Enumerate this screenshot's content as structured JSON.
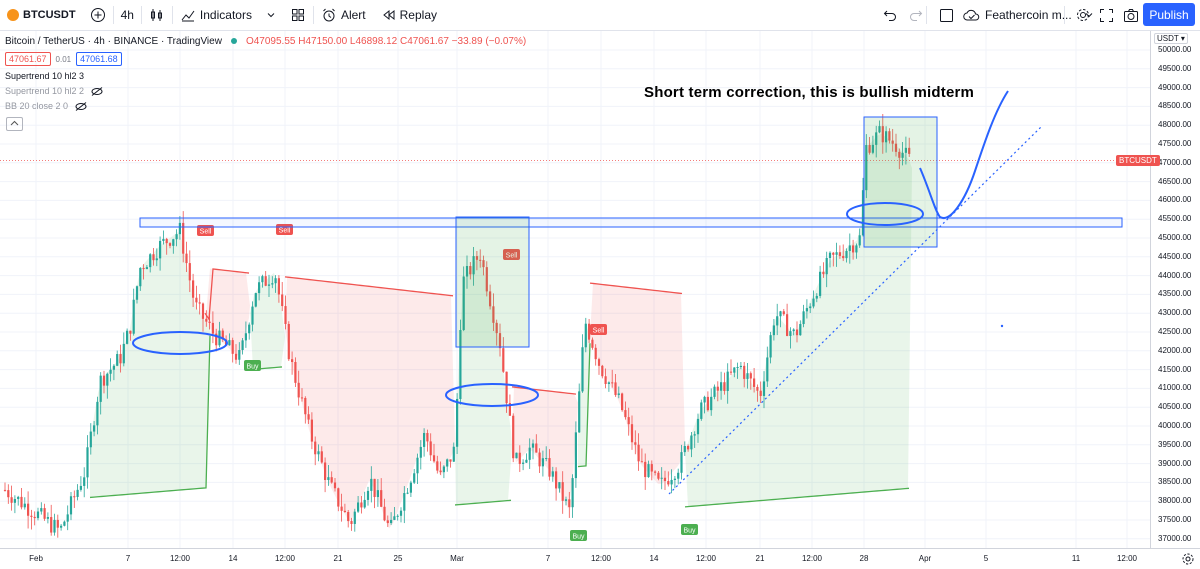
{
  "toolbar": {
    "symbol": "BTCUSDT",
    "interval": "4h",
    "indicators_label": "Indicators",
    "alert_label": "Alert",
    "replay_label": "Replay",
    "layout_name": "Feathercoin m...",
    "publish_label": "Publish"
  },
  "legend": {
    "title": "Bitcoin / TetherUS · 4h · BINANCE · TradingView",
    "ohlc": "O47095.55 H47150.00 L46898.12 C47061.67 −33.89 (−0.07%)",
    "bid": "47061.67",
    "spread": "0.01",
    "ask": "47061.68"
  },
  "indicators": [
    {
      "label": "Supertrend 10 hl2 3"
    },
    {
      "label": "Supertrend 10 hl2 2"
    },
    {
      "label": "BB 20 close 2 0"
    }
  ],
  "annotation": "Short term correction, this is bullish midterm",
  "price_axis": {
    "currency": "USDT",
    "ticks": [
      "50000.00",
      "49500.00",
      "49000.00",
      "48500.00",
      "48000.00",
      "47500.00",
      "47000.00",
      "46500.00",
      "46000.00",
      "45500.00",
      "45000.00",
      "44500.00",
      "44000.00",
      "43500.00",
      "43000.00",
      "42500.00",
      "42000.00",
      "41500.00",
      "41000.00",
      "40500.00",
      "40000.00",
      "39500.00",
      "39000.00",
      "38500.00",
      "38000.00",
      "37500.00",
      "37000.00"
    ],
    "last_label": "BTCUSDT"
  },
  "time_axis": {
    "ticks": [
      "Feb",
      "7",
      "12:00",
      "14",
      "12:00",
      "21",
      "25",
      "Mar",
      "7",
      "12:00",
      "14",
      "12:00",
      "21",
      "12:00",
      "28",
      "Apr",
      "5",
      "11",
      "12:00"
    ]
  },
  "signals": [
    {
      "label": "Sell"
    },
    {
      "label": "Sell"
    },
    {
      "label": "Buy"
    },
    {
      "label": "Sell"
    },
    {
      "label": "Buy"
    },
    {
      "label": "Sell"
    },
    {
      "label": "Buy"
    }
  ],
  "colors": {
    "up": "#26a69a",
    "down": "#ef5350",
    "supertrend_up": "#4caf50",
    "supertrend_down": "#ef5350",
    "drawing": "#2962ff",
    "accent": "#2962ff"
  }
}
